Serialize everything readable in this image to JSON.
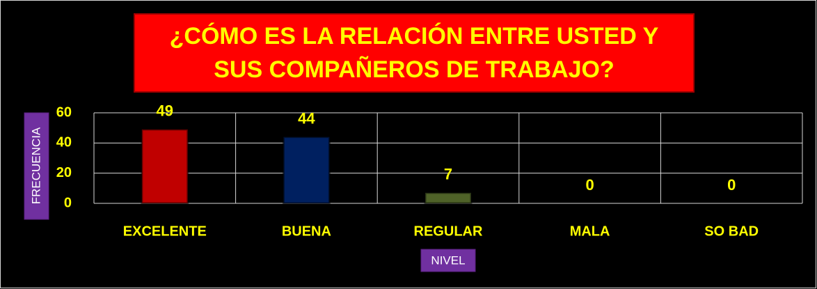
{
  "chart_data": {
    "type": "bar",
    "title": "¿CÓMO ES LA RELACIÓN ENTRE USTED Y SUS COMPAÑEROS DE TRABAJO?",
    "x_label": "NIVEL",
    "y_label": "FRECUENCIA",
    "categories": [
      "EXCELENTE",
      "BUENA",
      "REGULAR",
      "MALA",
      "SO BAD"
    ],
    "values": [
      49,
      44,
      7,
      0,
      0
    ],
    "colors": [
      "#c00000",
      "#002060",
      "#4f6228",
      "#4f6228",
      "#4f6228"
    ],
    "ylim": [
      0,
      60
    ],
    "yticks": [
      0,
      20,
      40,
      60
    ],
    "grid": true
  }
}
